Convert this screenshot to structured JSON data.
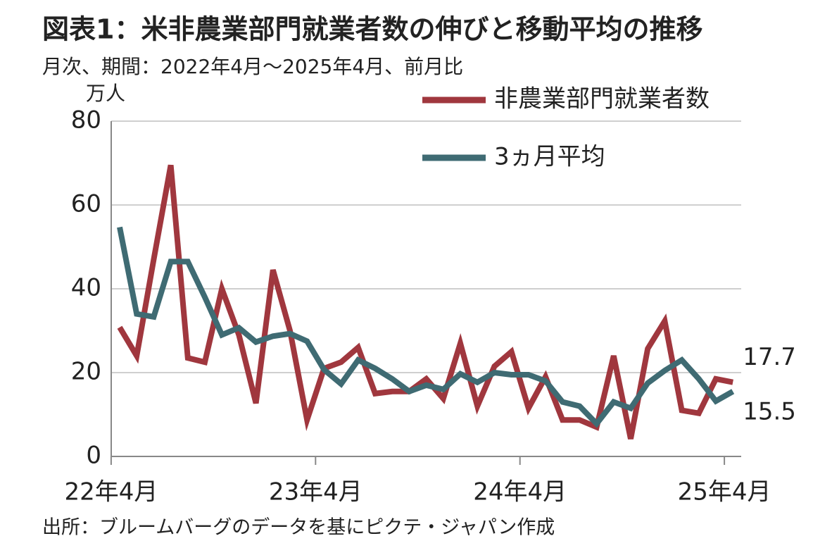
{
  "chart_data": {
    "type": "line",
    "title": "図表1：米非農業部門就業者数の伸びと移動平均の推移",
    "subtitle": "月次、期間：2022年4月～2025年4月、前月比",
    "y_unit": "万人",
    "source": "出所：ブルームバーグのデータを基にピクテ・ジャパン作成",
    "categories": [
      "22年4月",
      null,
      null,
      null,
      null,
      null,
      null,
      null,
      null,
      null,
      null,
      null,
      "23年4月",
      null,
      null,
      null,
      null,
      null,
      null,
      null,
      null,
      null,
      null,
      null,
      "24年4月",
      null,
      null,
      null,
      null,
      null,
      null,
      null,
      null,
      null,
      null,
      null,
      "25年4月"
    ],
    "series": [
      {
        "name": "非農業部門就業者数",
        "color": "#a0373e",
        "values": [
          30.8,
          24,
          47,
          69.5,
          23.5,
          22.5,
          40,
          29,
          12.7,
          44.5,
          30,
          8.7,
          21,
          22.5,
          26,
          15,
          15.5,
          15.5,
          18.5,
          13.8,
          27,
          12,
          21.5,
          25,
          11.5,
          19,
          8.7,
          8.7,
          7,
          24,
          4.2,
          25.7,
          32.3,
          11,
          10.3,
          18.5,
          17.7
        ]
      },
      {
        "name": "3ヵ月平均",
        "color": "#3f6b73",
        "values": [
          54.7,
          34,
          33.3,
          46.5,
          46.5,
          38,
          29,
          30.7,
          27.3,
          28.7,
          29.3,
          27.5,
          20.7,
          17.3,
          23,
          21,
          18.5,
          15.5,
          17,
          16,
          19.7,
          17.7,
          20,
          19.5,
          19.5,
          18,
          13,
          12,
          7.8,
          13,
          11.5,
          17.5,
          20.5,
          23,
          18.5,
          13.2,
          15.5
        ]
      }
    ],
    "ylim": [
      0,
      80
    ],
    "yticks": [
      0,
      20,
      40,
      60,
      80
    ],
    "grid": true
  }
}
